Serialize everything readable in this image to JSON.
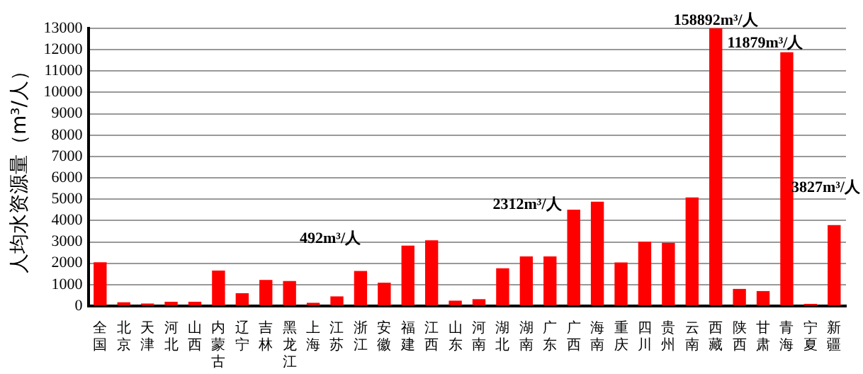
{
  "chart_data": {
    "type": "bar",
    "ylabel": "人均水资源量（m³/人）",
    "categories": [
      "全国",
      "北京",
      "天津",
      "河北",
      "山西",
      "内蒙古",
      "辽宁",
      "吉林",
      "黑龙江",
      "上海",
      "江苏",
      "浙江",
      "安徽",
      "福建",
      "江西",
      "山东",
      "河南",
      "湖北",
      "湖南",
      "广东",
      "广西",
      "海南",
      "重庆",
      "四川",
      "贵州",
      "云南",
      "西藏",
      "陕西",
      "甘肃",
      "青海",
      "宁夏",
      "新疆"
    ],
    "values": [
      2050,
      170,
      120,
      200,
      200,
      1660,
      600,
      1220,
      1170,
      150,
      450,
      1640,
      1090,
      2830,
      3080,
      250,
      320,
      1770,
      2320,
      2320,
      4510,
      4880,
      2040,
      3010,
      2960,
      5080,
      13000,
      800,
      700,
      11880,
      100,
      3790
    ],
    "color": "#ff0000",
    "ylim": [
      0,
      13000
    ],
    "yticks": [
      0,
      1000,
      2000,
      3000,
      4000,
      5000,
      6000,
      7000,
      8000,
      9000,
      10000,
      11000,
      12000,
      13000
    ],
    "grid": "y",
    "legend": false,
    "annotations": [
      "492m³/人",
      "2312m³/人",
      {
        "text": "158892m³/人",
        "x": "西藏",
        "y": 13000
      },
      "11879m³/人",
      "3827m³/人"
    ]
  }
}
